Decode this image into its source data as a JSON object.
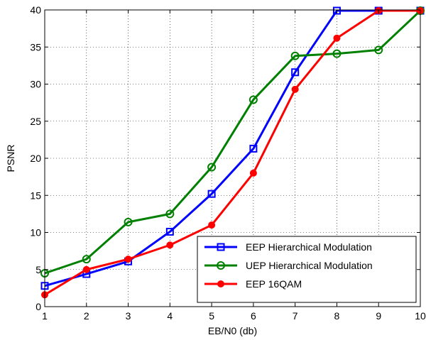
{
  "chart_data": {
    "type": "line",
    "xlabel": "EB/N0 (db)",
    "ylabel": "PSNR",
    "xlim": [
      1,
      10
    ],
    "ylim": [
      0,
      40
    ],
    "xticks": [
      1,
      2,
      3,
      4,
      5,
      6,
      7,
      8,
      9,
      10
    ],
    "yticks": [
      0,
      5,
      10,
      15,
      20,
      25,
      30,
      35,
      40
    ],
    "grid": true,
    "legend_position": "bottom-right",
    "x": [
      1,
      2,
      3,
      4,
      5,
      6,
      7,
      8,
      9,
      10
    ],
    "series": [
      {
        "name": "EEP Hierarchical Modulation",
        "color": "#0000ff",
        "marker": "square",
        "values": [
          2.8,
          4.4,
          6.1,
          10.1,
          15.2,
          21.3,
          31.6,
          39.9,
          39.9,
          39.9
        ]
      },
      {
        "name": "UEP Hierarchical Modulation",
        "color": "#008000",
        "marker": "circle-open",
        "values": [
          4.5,
          6.4,
          11.4,
          12.5,
          18.8,
          27.9,
          33.8,
          34.1,
          34.6,
          39.9
        ]
      },
      {
        "name": "EEP 16QAM",
        "color": "#ff0000",
        "marker": "circle-filled",
        "values": [
          1.6,
          5.0,
          6.4,
          8.3,
          11.0,
          18.0,
          29.3,
          36.2,
          39.9,
          39.9
        ]
      }
    ]
  }
}
